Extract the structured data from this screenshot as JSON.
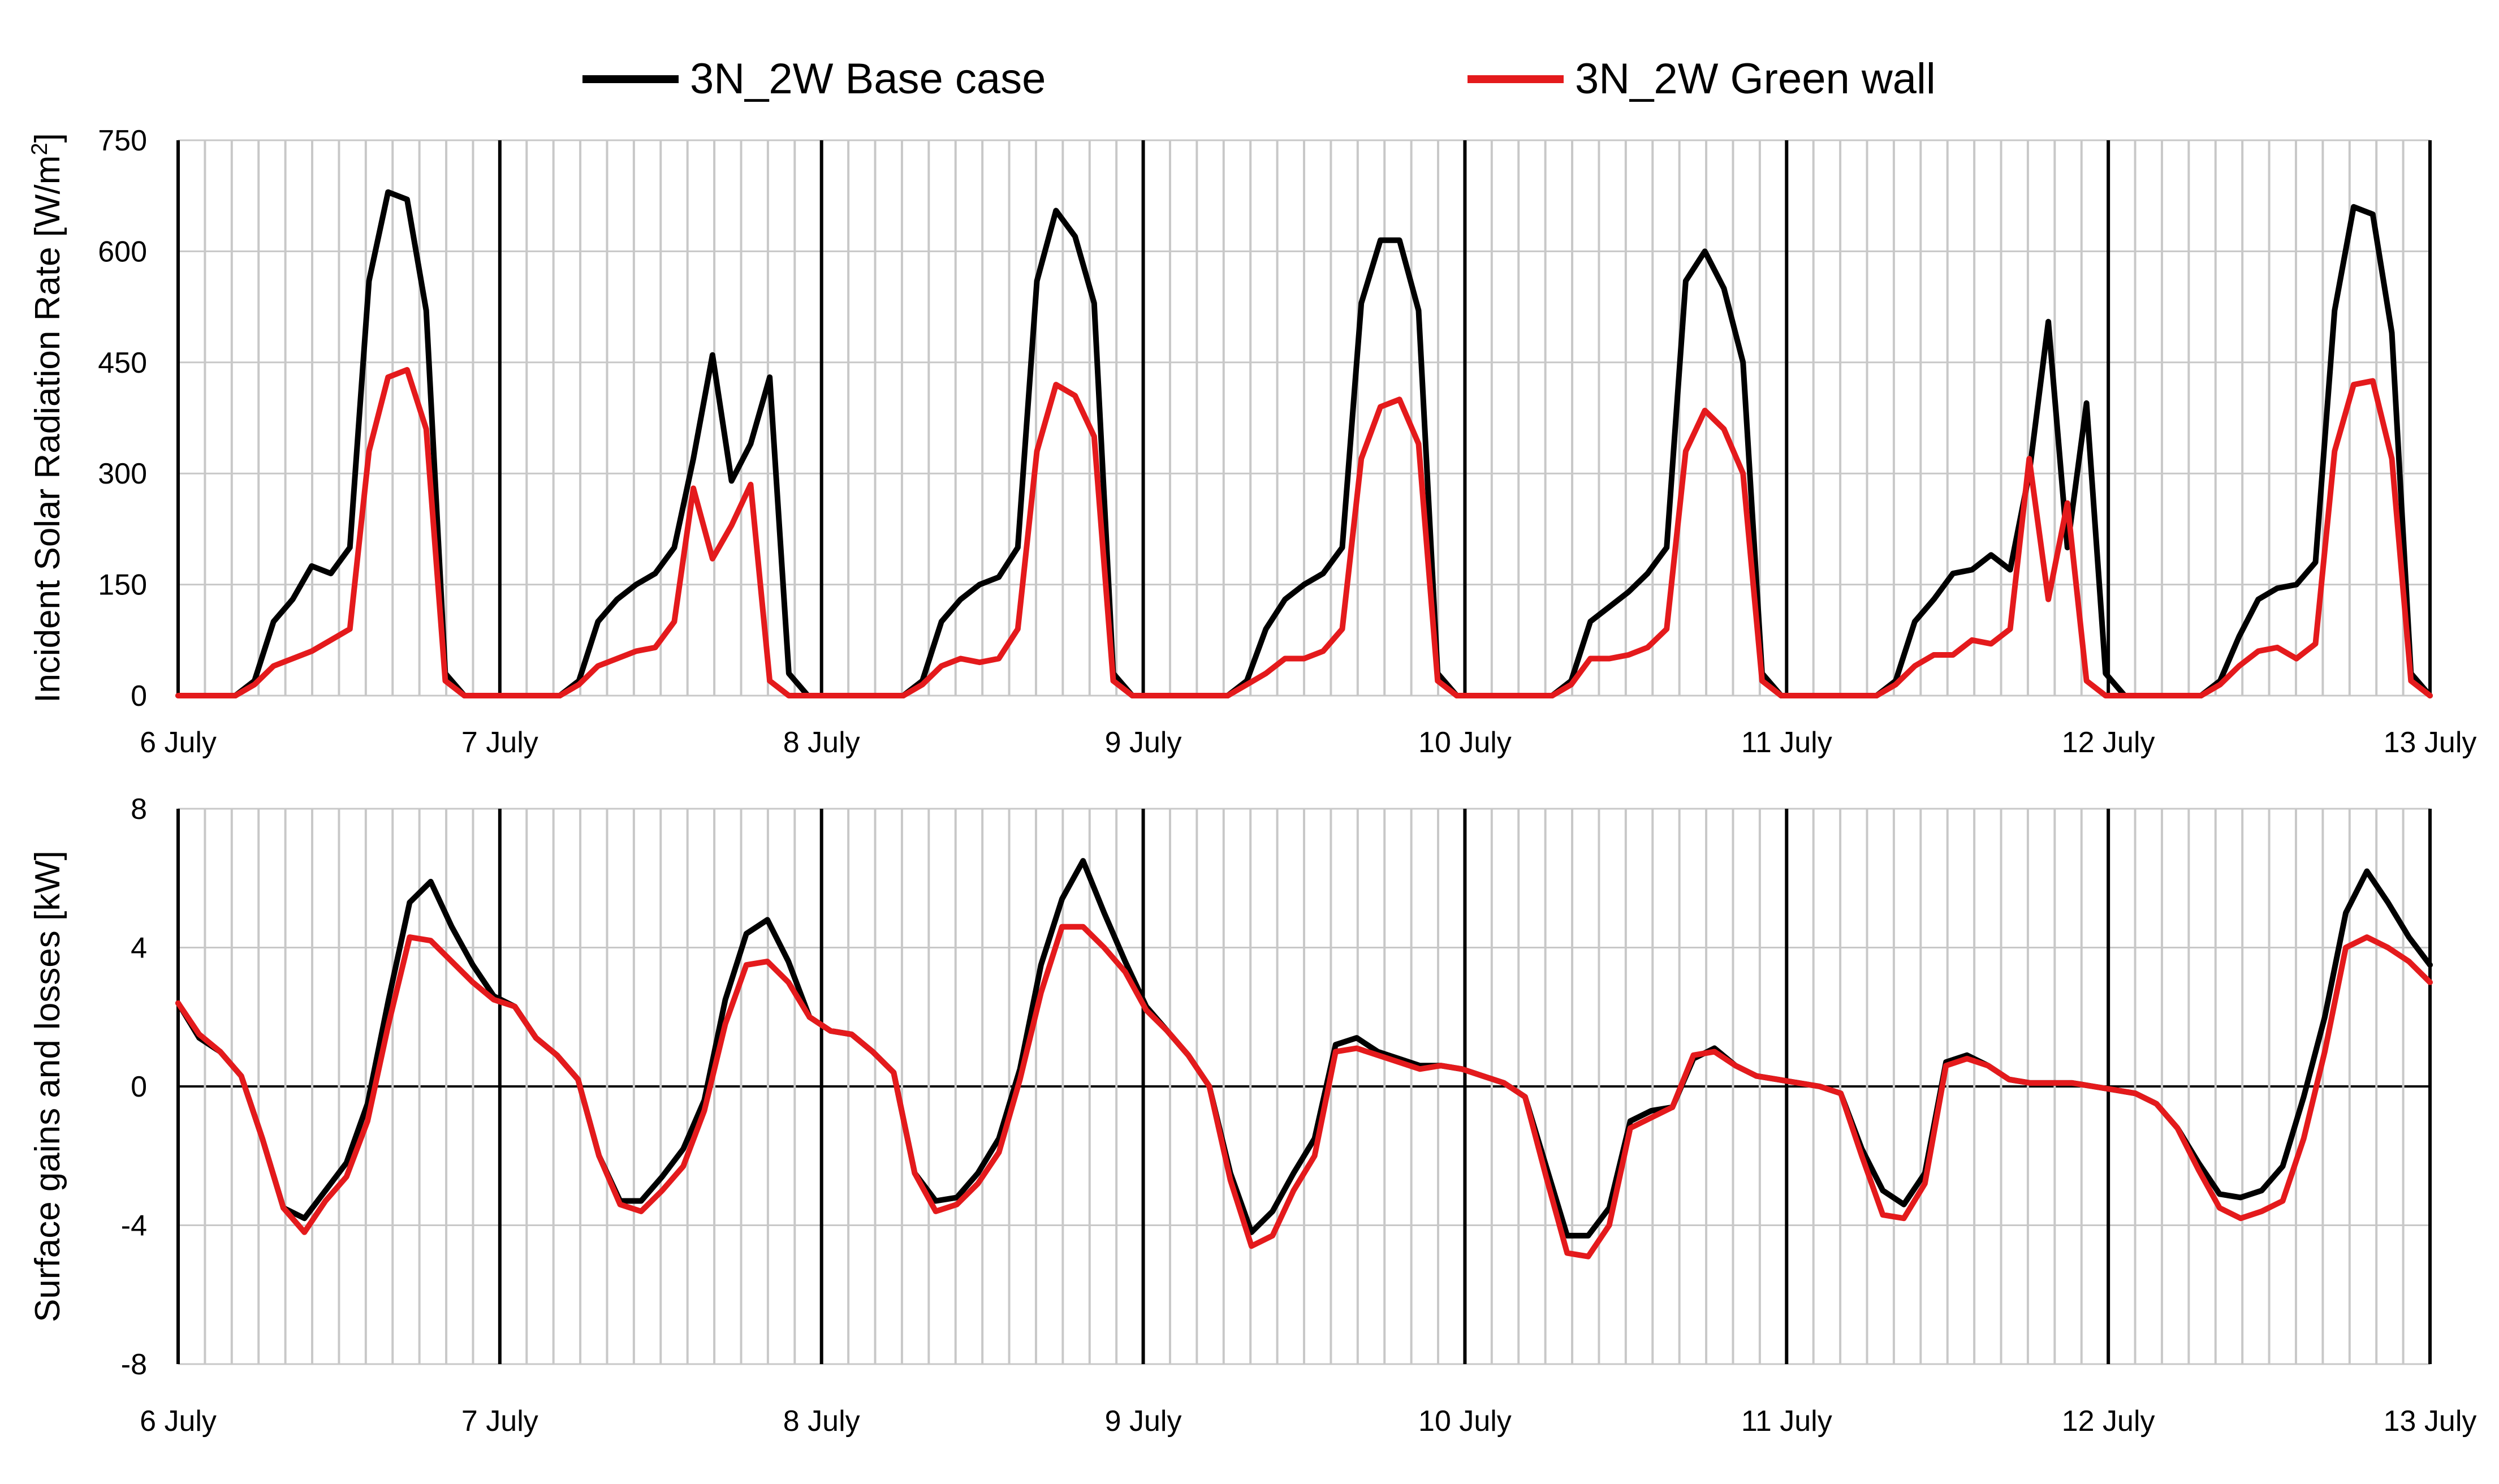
{
  "legend": {
    "base_label": "3N_2W Base case",
    "green_label": "3N_2W Green wall"
  },
  "colors": {
    "base": "#000000",
    "green": "#e41a1c",
    "grid": "#c8c8c8",
    "day": "#000000"
  },
  "chart_data": [
    {
      "type": "line",
      "title": "",
      "xlabel": "",
      "ylabel": "Incident Solar Radiation Rate [W/m²]",
      "ylabel_main": "Incident Solar Radiation Rate [W/m",
      "ylabel_sup": "2",
      "ylabel_end": "]",
      "ylim": [
        0,
        750
      ],
      "yticks": [
        0,
        150,
        300,
        450,
        600,
        750
      ],
      "xlim": [
        0,
        7
      ],
      "xtick_labels": [
        "6 July",
        "7 July",
        "8 July",
        "9 July",
        "10 July",
        "11 July",
        "12 July",
        "13 July"
      ],
      "x_step_hours": 2,
      "series": [
        {
          "name": "3N_2W Base case",
          "values": [
            0,
            0,
            0,
            0,
            20,
            100,
            130,
            175,
            165,
            200,
            560,
            680,
            670,
            520,
            30,
            0,
            0,
            0,
            0,
            0,
            0,
            20,
            100,
            130,
            150,
            165,
            200,
            320,
            460,
            290,
            340,
            430,
            30,
            0,
            0,
            0,
            0,
            0,
            0,
            20,
            100,
            130,
            150,
            160,
            200,
            560,
            655,
            620,
            530,
            30,
            0,
            0,
            0,
            0,
            0,
            0,
            20,
            90,
            130,
            150,
            165,
            200,
            530,
            615,
            615,
            520,
            30,
            0,
            0,
            0,
            0,
            0,
            0,
            20,
            100,
            120,
            140,
            165,
            200,
            560,
            600,
            550,
            450,
            30,
            0,
            0,
            0,
            0,
            0,
            0,
            20,
            100,
            130,
            165,
            170,
            190,
            170,
            300,
            505,
            200,
            395,
            30,
            0,
            0,
            0,
            0,
            0,
            20,
            80,
            130,
            145,
            150,
            180,
            520,
            660,
            650,
            490,
            30,
            0
          ]
        },
        {
          "name": "3N_2W Green wall",
          "values": [
            0,
            0,
            0,
            0,
            15,
            40,
            50,
            60,
            75,
            90,
            330,
            430,
            440,
            360,
            20,
            0,
            0,
            0,
            0,
            0,
            0,
            15,
            40,
            50,
            60,
            65,
            100,
            280,
            185,
            230,
            285,
            20,
            0,
            0,
            0,
            0,
            0,
            0,
            0,
            15,
            40,
            50,
            45,
            50,
            90,
            330,
            420,
            405,
            350,
            20,
            0,
            0,
            0,
            0,
            0,
            0,
            15,
            30,
            50,
            50,
            60,
            90,
            320,
            390,
            400,
            340,
            20,
            0,
            0,
            0,
            0,
            0,
            0,
            15,
            50,
            50,
            55,
            65,
            90,
            330,
            385,
            360,
            300,
            20,
            0,
            0,
            0,
            0,
            0,
            0,
            15,
            40,
            55,
            55,
            75,
            70,
            90,
            320,
            130,
            260,
            20,
            0,
            0,
            0,
            0,
            0,
            0,
            15,
            40,
            60,
            65,
            50,
            70,
            330,
            420,
            425,
            320,
            20,
            0
          ]
        }
      ]
    },
    {
      "type": "line",
      "title": "",
      "xlabel": "",
      "ylabel": "Surface gains and losses [kW]",
      "ylim": [
        -8,
        8
      ],
      "yticks": [
        -8,
        -4,
        0,
        4,
        8
      ],
      "xlim": [
        0,
        7
      ],
      "xtick_labels": [
        "6 July",
        "7 July",
        "8 July",
        "9 July",
        "10 July",
        "11 July",
        "12 July",
        "13 July"
      ],
      "x_step_hours": 2,
      "series": [
        {
          "name": "3N_2W Base case",
          "values": [
            2.4,
            1.4,
            1.0,
            0.3,
            -1.5,
            -3.5,
            -3.8,
            -3.0,
            -2.2,
            -0.5,
            2.5,
            5.3,
            5.9,
            4.6,
            3.5,
            2.6,
            2.3,
            1.4,
            0.9,
            0.2,
            -2.0,
            -3.3,
            -3.3,
            -2.6,
            -1.8,
            -0.4,
            2.5,
            4.4,
            4.8,
            3.6,
            2.0,
            1.6,
            1.5,
            1.0,
            0.4,
            -2.5,
            -3.3,
            -3.2,
            -2.5,
            -1.5,
            0.5,
            3.5,
            5.4,
            6.5,
            5.0,
            3.6,
            2.3,
            1.6,
            0.9,
            0.0,
            -2.5,
            -4.2,
            -3.6,
            -2.5,
            -1.5,
            1.2,
            1.4,
            1.0,
            0.8,
            0.6,
            0.6,
            0.5,
            0.3,
            0.1,
            -0.3,
            -2.3,
            -4.3,
            -4.3,
            -3.5,
            -1.0,
            -0.7,
            -0.6,
            0.8,
            1.1,
            0.6,
            0.3,
            0.2,
            0.1,
            0.0,
            -0.2,
            -1.8,
            -3.0,
            -3.4,
            -2.5,
            0.7,
            0.9,
            0.6,
            0.2,
            0.1,
            0.1,
            0.1,
            0.0,
            -0.1,
            -0.2,
            -0.5,
            -1.2,
            -2.2,
            -3.1,
            -3.2,
            -3.0,
            -2.3,
            -0.3,
            2.0,
            5.0,
            6.2,
            5.3,
            4.3,
            3.5
          ]
        },
        {
          "name": "3N_2W Green wall",
          "values": [
            2.4,
            1.5,
            1.0,
            0.3,
            -1.5,
            -3.5,
            -4.2,
            -3.3,
            -2.6,
            -1.0,
            1.8,
            4.3,
            4.2,
            3.6,
            3.0,
            2.5,
            2.3,
            1.4,
            0.9,
            0.2,
            -2.0,
            -3.4,
            -3.6,
            -3.0,
            -2.3,
            -0.7,
            1.8,
            3.5,
            3.6,
            3.0,
            2.0,
            1.6,
            1.5,
            1.0,
            0.4,
            -2.5,
            -3.6,
            -3.4,
            -2.8,
            -1.9,
            0.2,
            2.7,
            4.6,
            4.6,
            4.0,
            3.3,
            2.2,
            1.6,
            0.9,
            0.0,
            -2.7,
            -4.6,
            -4.3,
            -3.0,
            -2.0,
            1.0,
            1.1,
            0.9,
            0.7,
            0.5,
            0.6,
            0.5,
            0.3,
            0.1,
            -0.3,
            -2.6,
            -4.8,
            -4.9,
            -4.0,
            -1.2,
            -0.9,
            -0.6,
            0.9,
            1.0,
            0.6,
            0.3,
            0.2,
            0.1,
            0.0,
            -0.2,
            -2.0,
            -3.7,
            -3.8,
            -2.8,
            0.6,
            0.8,
            0.6,
            0.2,
            0.1,
            0.1,
            0.1,
            0.0,
            -0.1,
            -0.2,
            -0.5,
            -1.2,
            -2.4,
            -3.5,
            -3.8,
            -3.6,
            -3.3,
            -1.5,
            1.0,
            4.0,
            4.3,
            4.0,
            3.6,
            3.0
          ]
        }
      ]
    }
  ]
}
